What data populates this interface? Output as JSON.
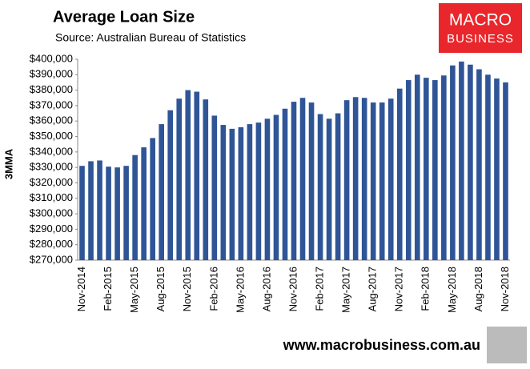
{
  "chart_data": {
    "type": "bar",
    "title": "Average Loan Size",
    "subtitle": "Source: Australian Bureau of Statistics",
    "y_label": "3MMA",
    "categories": [
      "Nov-2014",
      null,
      null,
      "Feb-2015",
      null,
      null,
      "May-2015",
      null,
      null,
      "Aug-2015",
      null,
      null,
      "Nov-2015",
      null,
      null,
      "Feb-2016",
      null,
      null,
      "May-2016",
      null,
      null,
      "Aug-2016",
      null,
      null,
      "Nov-2016",
      null,
      null,
      "Feb-2017",
      null,
      null,
      "May-2017",
      null,
      null,
      "Aug-2017",
      null,
      null,
      "Nov-2017",
      null,
      null,
      "Feb-2018",
      null,
      null,
      "May-2018",
      null,
      null,
      "Aug-2018",
      null,
      null,
      "Nov-2018"
    ],
    "values": [
      331000,
      334000,
      334500,
      330500,
      330000,
      331000,
      338000,
      343000,
      349000,
      358000,
      367000,
      374500,
      380000,
      379000,
      374000,
      363500,
      357500,
      355000,
      356000,
      358000,
      359000,
      361500,
      364000,
      368000,
      372500,
      375000,
      372000,
      364500,
      361500,
      365000,
      373500,
      375500,
      375000,
      372000,
      372000,
      374500,
      381000,
      386500,
      390000,
      388000,
      386500,
      389500,
      396000,
      398500,
      396500,
      393500,
      390000,
      387500,
      385000
    ],
    "color": "#2f5597",
    "ylim": [
      270000,
      400000
    ],
    "yticks": [
      {
        "value": 270000,
        "label": "$270,000"
      },
      {
        "value": 280000,
        "label": "$280,000"
      },
      {
        "value": 290000,
        "label": "$290,000"
      },
      {
        "value": 300000,
        "label": "$300,000"
      },
      {
        "value": 310000,
        "label": "$310,000"
      },
      {
        "value": 320000,
        "label": "$320,000"
      },
      {
        "value": 330000,
        "label": "$330,000"
      },
      {
        "value": 340000,
        "label": "$340,000"
      },
      {
        "value": 350000,
        "label": "$350,000"
      },
      {
        "value": 360000,
        "label": "$360,000"
      },
      {
        "value": 370000,
        "label": "$370,000"
      },
      {
        "value": 380000,
        "label": "$380,000"
      },
      {
        "value": 390000,
        "label": "$390,000"
      },
      {
        "value": 400000,
        "label": "$400,000"
      }
    ],
    "grid": false
  },
  "logo": {
    "line1": "MACRO",
    "line2": "BUSINESS"
  },
  "footer": "www.macrobusiness.com.au"
}
